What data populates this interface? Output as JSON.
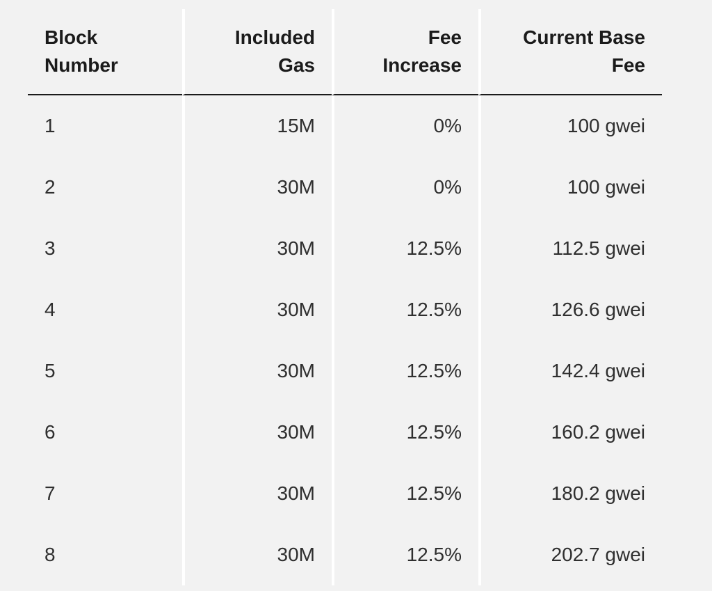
{
  "chart_data": {
    "type": "table",
    "title": "",
    "columns": [
      "Block Number",
      "Included Gas",
      "Fee Increase",
      "Current Base Fee"
    ],
    "header_lines": [
      [
        "Block",
        "Number"
      ],
      [
        "Included",
        "Gas"
      ],
      [
        "Fee",
        "Increase"
      ],
      [
        "Current Base",
        "Fee"
      ]
    ],
    "rows": [
      [
        "1",
        "15M",
        "0%",
        "100 gwei"
      ],
      [
        "2",
        "30M",
        "0%",
        "100 gwei"
      ],
      [
        "3",
        "30M",
        "12.5%",
        "112.5 gwei"
      ],
      [
        "4",
        "30M",
        "12.5%",
        "126.6 gwei"
      ],
      [
        "5",
        "30M",
        "12.5%",
        "142.4 gwei"
      ],
      [
        "6",
        "30M",
        "12.5%",
        "160.2 gwei"
      ],
      [
        "7",
        "30M",
        "12.5%",
        "180.2 gwei"
      ],
      [
        "8",
        "30M",
        "12.5%",
        "202.7 gwei"
      ]
    ],
    "layout": {
      "column_alignment": [
        "left",
        "right",
        "right",
        "right"
      ],
      "grid": "white vertical gutters between columns, dark rule under header"
    }
  },
  "colors": {
    "background": "#f2f2f2",
    "column_separator": "#ffffff",
    "header_text": "#1b1b1b",
    "body_text": "#2f2f2f",
    "header_rule": "#1b1b1b"
  }
}
